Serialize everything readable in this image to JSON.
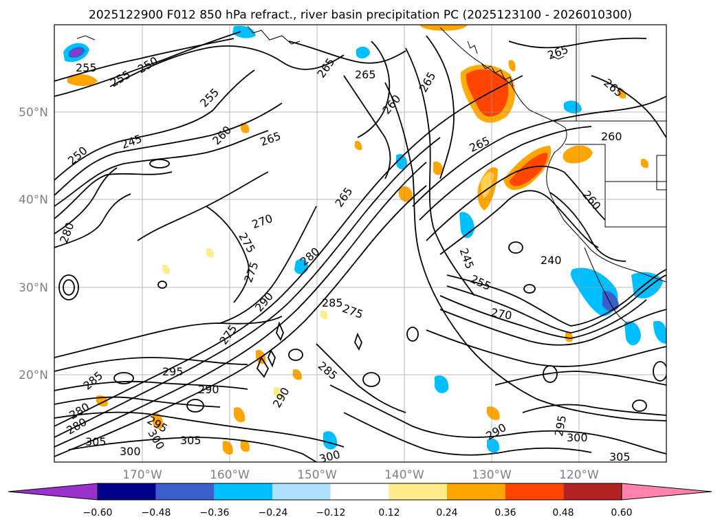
{
  "title": "2025122900 F012 850 hPa refract., river basin precipitation PC (2025123100 - 2026010300)",
  "lat_labels": [
    "50°N",
    "40°N",
    "30°N",
    "20°N"
  ],
  "lon_labels": [
    "170°W",
    "160°W",
    "150°W",
    "140°W",
    "130°W",
    "120°W"
  ],
  "contour_labels": [
    "255",
    "255",
    "250",
    "265",
    "265",
    "265",
    "265",
    "265",
    "260",
    "255",
    "245",
    "260",
    "265",
    "250",
    "260",
    "265",
    "265",
    "280",
    "270",
    "275",
    "275",
    "280",
    "285",
    "275",
    "290",
    "275",
    "245",
    "240",
    "255",
    "270",
    "295",
    "285",
    "290",
    "285",
    "280",
    "305",
    "300",
    "305",
    "300",
    "295",
    "290",
    "290",
    "295",
    "300",
    "305",
    "300",
    "280",
    "260"
  ],
  "colorbar": {
    "ticks": [
      "−0.60",
      "−0.48",
      "−0.36",
      "−0.24",
      "−0.12",
      "0.12",
      "0.24",
      "0.36",
      "0.48",
      "0.60"
    ],
    "colors": [
      "#9932cc",
      "#00008b",
      "#3a5fcd",
      "#00bfff",
      "#b0e2ff",
      "#ffffff",
      "#ffec8b",
      "#ffa500",
      "#ff4500",
      "#b22222",
      "#ff82ab"
    ]
  },
  "colors": {
    "contour": "#000000",
    "grid": "#999999",
    "coast": "#000000"
  }
}
